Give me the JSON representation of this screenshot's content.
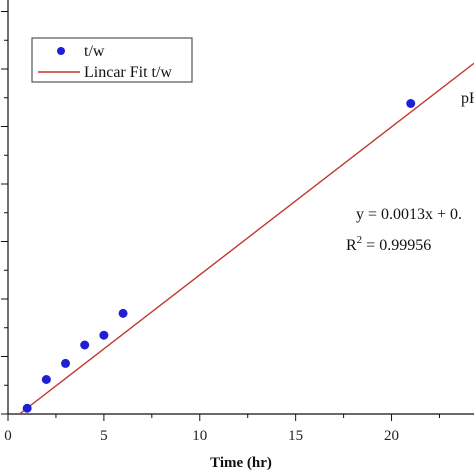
{
  "chart_data": {
    "type": "scatter",
    "title": "",
    "xlabel": "Time (hr)",
    "ylabel": "",
    "xlim": [
      0,
      24.3
    ],
    "x_ticks": [
      "0",
      "5",
      "10",
      "15",
      "20"
    ],
    "grid": false,
    "legend_position": "top-left",
    "series": [
      {
        "name": "t/w",
        "kind": "scatter",
        "color": "#1f1fd6",
        "x": [
          1,
          2,
          3,
          4,
          5,
          6,
          21
        ],
        "y": [
          0.1,
          0.6,
          0.88,
          1.2,
          1.37,
          1.75,
          5.4
        ]
      },
      {
        "name": "Lincar Fit t/w",
        "kind": "line",
        "color": "#c0392b",
        "x": [
          0.6,
          24.3
        ],
        "y": [
          0.0,
          6.1
        ]
      }
    ],
    "annotations": {
      "series_label": "pH",
      "equation": "y = 0.0013x + 0.",
      "r_squared_prefix": "R",
      "r_squared_exp": "2",
      "r_squared_value": " = 0.99956"
    }
  }
}
